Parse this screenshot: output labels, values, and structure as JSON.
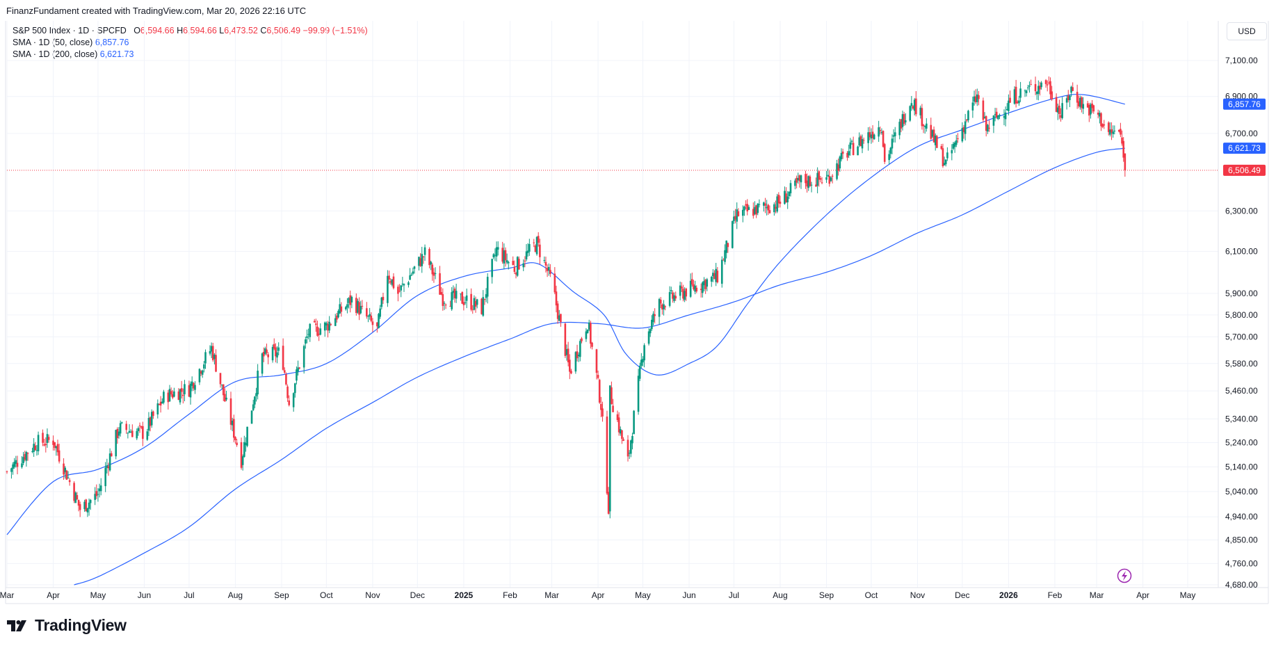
{
  "caption": "FinanzFundament created with TradingView.com, Mar 20, 2026 22:16 UTC",
  "currency_button": "USD",
  "footer_brand": "TradingView",
  "legend": {
    "symbol": "S&P 500 Index · 1D · SPCFD",
    "o_label": "O",
    "o_value": "6,594.66",
    "h_label": "H",
    "h_value": "6,594.66",
    "l_label": "L",
    "l_value": "6,473.52",
    "c_label": "C",
    "c_value": "6,506.49",
    "change": "−99.99 (−1.51%)",
    "sma50_label": "SMA · 1D (50, close)",
    "sma50_value": "6,857.76",
    "sma200_label": "SMA · 1D (200, close)",
    "sma200_value": "6,621.73"
  },
  "colors": {
    "up": "#089981",
    "down": "#f23645",
    "sma": "#2962ff",
    "grid": "#f0f3fa"
  },
  "chart_data": {
    "type": "candlestick",
    "y_scale": "log",
    "ylim": [
      4680,
      7100
    ],
    "y_ticks": [
      {
        "v": 7100,
        "label": "7,100.00"
      },
      {
        "v": 6900,
        "label": "6,900.00"
      },
      {
        "v": 6700,
        "label": "6,700.00"
      },
      {
        "v": 6300,
        "label": "6,300.00"
      },
      {
        "v": 6100,
        "label": "6,100.00"
      },
      {
        "v": 5900,
        "label": "5,900.00"
      },
      {
        "v": 5800,
        "label": "5,800.00"
      },
      {
        "v": 5700,
        "label": "5,700.00"
      },
      {
        "v": 5580,
        "label": "5,580.00"
      },
      {
        "v": 5460,
        "label": "5,460.00"
      },
      {
        "v": 5340,
        "label": "5,340.00"
      },
      {
        "v": 5240,
        "label": "5,240.00"
      },
      {
        "v": 5140,
        "label": "5,140.00"
      },
      {
        "v": 5040,
        "label": "5,040.00"
      },
      {
        "v": 4940,
        "label": "4,940.00"
      },
      {
        "v": 4850,
        "label": "4,850.00"
      },
      {
        "v": 4760,
        "label": "4,760.00"
      },
      {
        "v": 4680,
        "label": "4,680.00"
      }
    ],
    "x_ticks": [
      {
        "date": "2024-03-01",
        "label": "Mar",
        "bold": false
      },
      {
        "date": "2024-04-01",
        "label": "Apr",
        "bold": false
      },
      {
        "date": "2024-05-01",
        "label": "May",
        "bold": false
      },
      {
        "date": "2024-06-01",
        "label": "Jun",
        "bold": false
      },
      {
        "date": "2024-07-01",
        "label": "Jul",
        "bold": false
      },
      {
        "date": "2024-08-01",
        "label": "Aug",
        "bold": false
      },
      {
        "date": "2024-09-01",
        "label": "Sep",
        "bold": false
      },
      {
        "date": "2024-10-01",
        "label": "Oct",
        "bold": false
      },
      {
        "date": "2024-11-01",
        "label": "Nov",
        "bold": false
      },
      {
        "date": "2024-12-01",
        "label": "Dec",
        "bold": false
      },
      {
        "date": "2025-01-01",
        "label": "2025",
        "bold": true
      },
      {
        "date": "2025-02-01",
        "label": "Feb",
        "bold": false
      },
      {
        "date": "2025-03-01",
        "label": "Mar",
        "bold": false
      },
      {
        "date": "2025-04-01",
        "label": "Apr",
        "bold": false
      },
      {
        "date": "2025-05-01",
        "label": "May",
        "bold": false
      },
      {
        "date": "2025-06-01",
        "label": "Jun",
        "bold": false
      },
      {
        "date": "2025-07-01",
        "label": "Jul",
        "bold": false
      },
      {
        "date": "2025-08-01",
        "label": "Aug",
        "bold": false
      },
      {
        "date": "2025-09-01",
        "label": "Sep",
        "bold": false
      },
      {
        "date": "2025-10-01",
        "label": "Oct",
        "bold": false
      },
      {
        "date": "2025-11-01",
        "label": "Nov",
        "bold": false
      },
      {
        "date": "2025-12-01",
        "label": "Dec",
        "bold": false
      },
      {
        "date": "2026-01-01",
        "label": "2026",
        "bold": true
      },
      {
        "date": "2026-02-01",
        "label": "Feb",
        "bold": false
      },
      {
        "date": "2026-03-01",
        "label": "Mar",
        "bold": false
      },
      {
        "date": "2026-04-01",
        "label": "Apr",
        "bold": false
      },
      {
        "date": "2026-05-01",
        "label": "May",
        "bold": false
      }
    ],
    "x_range": [
      "2024-03-01",
      "2026-05-31"
    ],
    "close_path": [
      [
        "2024-03-01",
        5120
      ],
      [
        "2024-03-21",
        5240
      ],
      [
        "2024-04-01",
        5250
      ],
      [
        "2024-04-19",
        4970
      ],
      [
        "2024-05-01",
        5030
      ],
      [
        "2024-05-15",
        5300
      ],
      [
        "2024-06-01",
        5280
      ],
      [
        "2024-06-15",
        5440
      ],
      [
        "2024-07-01",
        5470
      ],
      [
        "2024-07-16",
        5650
      ],
      [
        "2024-07-25",
        5420
      ],
      [
        "2024-08-05",
        5170
      ],
      [
        "2024-08-19",
        5610
      ],
      [
        "2024-09-01",
        5630
      ],
      [
        "2024-09-06",
        5410
      ],
      [
        "2024-09-19",
        5720
      ],
      [
        "2024-10-01",
        5750
      ],
      [
        "2024-10-18",
        5870
      ],
      [
        "2024-11-04",
        5730
      ],
      [
        "2024-11-11",
        6000
      ],
      [
        "2024-11-18",
        5900
      ],
      [
        "2024-12-06",
        6090
      ],
      [
        "2024-12-18",
        5880
      ],
      [
        "2025-01-02",
        5870
      ],
      [
        "2025-01-13",
        5830
      ],
      [
        "2025-01-23",
        6110
      ],
      [
        "2025-02-04",
        6020
      ],
      [
        "2025-02-19",
        6140
      ],
      [
        "2025-03-01",
        5950
      ],
      [
        "2025-03-13",
        5540
      ],
      [
        "2025-03-25",
        5770
      ],
      [
        "2025-04-03",
        5400
      ],
      [
        "2025-04-08",
        4980
      ],
      [
        "2025-04-09",
        5450
      ],
      [
        "2025-04-21",
        5160
      ],
      [
        "2025-05-02",
        5680
      ],
      [
        "2025-05-12",
        5850
      ],
      [
        "2025-06-01",
        5920
      ],
      [
        "2025-06-20",
        5980
      ],
      [
        "2025-07-03",
        6280
      ],
      [
        "2025-07-31",
        6340
      ],
      [
        "2025-08-15",
        6450
      ],
      [
        "2025-09-01",
        6460
      ],
      [
        "2025-09-15",
        6600
      ],
      [
        "2025-10-08",
        6750
      ],
      [
        "2025-10-10",
        6550
      ],
      [
        "2025-10-28",
        6890
      ],
      [
        "2025-11-20",
        6540
      ],
      [
        "2025-12-11",
        6900
      ],
      [
        "2025-12-17",
        6720
      ],
      [
        "2026-01-05",
        6900
      ],
      [
        "2026-01-15",
        6940
      ],
      [
        "2026-01-27",
        6980
      ],
      [
        "2026-02-05",
        6800
      ],
      [
        "2026-02-12",
        6940
      ],
      [
        "2026-02-20",
        6850
      ],
      [
        "2026-03-02",
        6800
      ],
      [
        "2026-03-09",
        6700
      ],
      [
        "2026-03-16",
        6710
      ],
      [
        "2026-03-19",
        6606.48
      ],
      [
        "2026-03-20",
        6506.49
      ]
    ],
    "last_candle": {
      "date": "2026-03-20",
      "open": 6594.66,
      "high": 6594.66,
      "low": 6473.52,
      "close": 6506.49
    },
    "series": [
      {
        "name": "SMA · 1D (50, close)",
        "last_value": 6857.76,
        "points": [
          [
            "2024-03-01",
            4870
          ],
          [
            "2024-04-01",
            5080
          ],
          [
            "2024-05-01",
            5130
          ],
          [
            "2024-06-01",
            5220
          ],
          [
            "2024-07-01",
            5360
          ],
          [
            "2024-08-01",
            5500
          ],
          [
            "2024-09-01",
            5530
          ],
          [
            "2024-10-01",
            5580
          ],
          [
            "2024-11-01",
            5720
          ],
          [
            "2024-12-01",
            5890
          ],
          [
            "2025-01-01",
            5980
          ],
          [
            "2025-02-01",
            6020
          ],
          [
            "2025-02-20",
            6040
          ],
          [
            "2025-03-15",
            5910
          ],
          [
            "2025-04-05",
            5800
          ],
          [
            "2025-04-20",
            5620
          ],
          [
            "2025-05-10",
            5530
          ],
          [
            "2025-06-01",
            5580
          ],
          [
            "2025-06-20",
            5660
          ],
          [
            "2025-07-10",
            5850
          ],
          [
            "2025-08-01",
            6050
          ],
          [
            "2025-09-01",
            6280
          ],
          [
            "2025-10-01",
            6470
          ],
          [
            "2025-11-01",
            6630
          ],
          [
            "2025-12-01",
            6720
          ],
          [
            "2026-01-01",
            6810
          ],
          [
            "2026-02-01",
            6890
          ],
          [
            "2026-02-20",
            6910
          ],
          [
            "2026-03-20",
            6857.76
          ]
        ]
      },
      {
        "name": "SMA · 1D (200, close)",
        "last_value": 6621.73,
        "points": [
          [
            "2024-04-15",
            4680
          ],
          [
            "2024-05-01",
            4710
          ],
          [
            "2024-06-01",
            4800
          ],
          [
            "2024-07-01",
            4900
          ],
          [
            "2024-08-01",
            5050
          ],
          [
            "2024-09-01",
            5170
          ],
          [
            "2024-10-01",
            5300
          ],
          [
            "2024-11-01",
            5410
          ],
          [
            "2024-12-01",
            5520
          ],
          [
            "2025-01-01",
            5610
          ],
          [
            "2025-02-01",
            5690
          ],
          [
            "2025-03-01",
            5760
          ],
          [
            "2025-04-01",
            5760
          ],
          [
            "2025-05-01",
            5740
          ],
          [
            "2025-06-01",
            5800
          ],
          [
            "2025-07-01",
            5860
          ],
          [
            "2025-08-01",
            5940
          ],
          [
            "2025-09-01",
            6000
          ],
          [
            "2025-10-01",
            6080
          ],
          [
            "2025-11-01",
            6190
          ],
          [
            "2025-12-01",
            6280
          ],
          [
            "2026-01-01",
            6400
          ],
          [
            "2026-02-01",
            6520
          ],
          [
            "2026-03-01",
            6600
          ],
          [
            "2026-03-20",
            6621.73
          ]
        ]
      }
    ],
    "price_labels": [
      {
        "value": 6857.76,
        "text": "6,857.76",
        "color": "#2962ff"
      },
      {
        "value": 6621.73,
        "text": "6,621.73",
        "color": "#2962ff"
      },
      {
        "value": 6506.49,
        "text": "6,506.49",
        "color": "#f23645"
      }
    ],
    "last_price_line": 6506.49
  }
}
